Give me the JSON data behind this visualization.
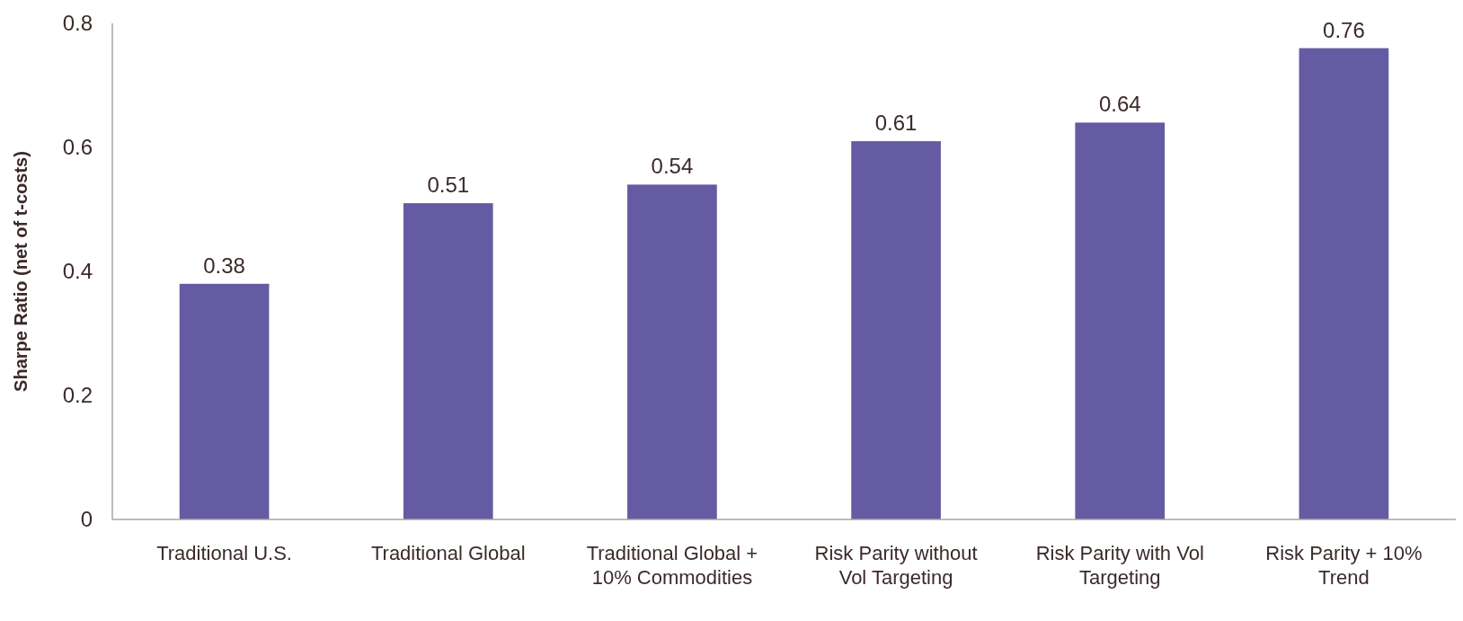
{
  "chart_data": {
    "type": "bar",
    "ylabel": "Sharpe Ratio (net of t-costs)",
    "categories": [
      "Traditional U.S.",
      "Traditional Global",
      "Traditional Global + 10% Commodities",
      "Risk Parity without Vol Targeting",
      "Risk Parity with Vol Targeting",
      "Risk Parity + 10% Trend"
    ],
    "values": [
      0.38,
      0.51,
      0.54,
      0.61,
      0.64,
      0.76
    ],
    "color": "#655ba3",
    "ylim": [
      0,
      0.8
    ],
    "yticks": [
      0,
      0.2,
      0.4,
      0.6,
      0.8
    ],
    "grid": false,
    "data_labels": true
  }
}
